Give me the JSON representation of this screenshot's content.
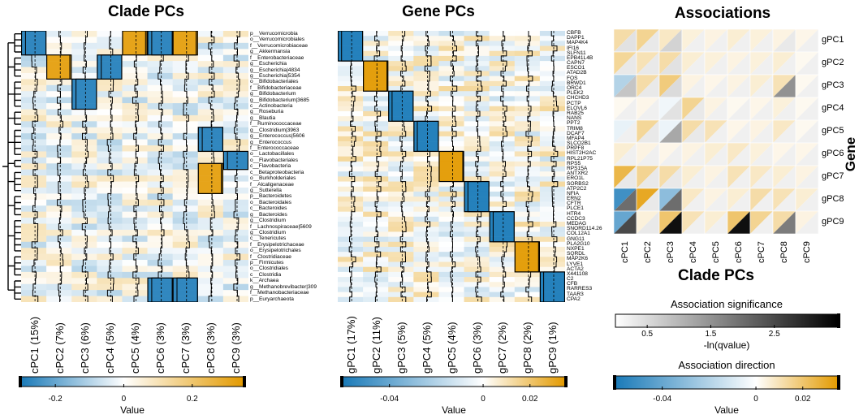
{
  "panels": {
    "clade": {
      "title": "Clade PCs",
      "column_labels": [
        "cPC1 (15%)",
        "cPC2 (7%)",
        "cPC3 (6%)",
        "cPC4 (5%)",
        "cPC5 (4%)",
        "cPC6 (3%)",
        "cPC7 (3%)",
        "cPC8 (3%)",
        "cPC9 (3%)"
      ],
      "row_labels": [
        "p__Verrucomicrobia",
        "o__Verrucomicrobiales",
        "f__Verrucomicrobiaceae",
        "g__Akkermansia",
        "f__Enterobacteriaceae",
        "g__Escherichia",
        "g__Escherichia|4834",
        "g__Escherichia|5354",
        "o__Bifidobacteriales",
        "f__Bifidobacteriaceae",
        "g__Bifidobacterium",
        "g__Bifidobacterium|3685",
        "c__Actinobacteria",
        "g__Roseburia",
        "g__Blautia",
        "f__Ruminococcaceae",
        "g__Clostridium|3963",
        "g__Enterococcus|5606",
        "g__Enterococcus",
        "f__Enterococcaceae",
        "o__Lactobacillales",
        "o__Flavobacteriales",
        "c__Flavobacteria",
        "c__Betaproteobacteria",
        "o__Burkholderiales",
        "f__Alcaligenaceae",
        "g__Sutterella",
        "p__Bacteroidetes",
        "o__Bacteroidales",
        "c__Bacteroides",
        "g__Bacteroides",
        "g__Clostridium",
        "f__Lachnospiraceae|5609",
        "g__Clostridium",
        "c__Tenericutes",
        "f__Erysipelotrichaceae",
        "o__Erysipelotrichales",
        "f__Clostridiaceae",
        "p__Firmicutes",
        "o__Clostridiales",
        "c__Clostridia",
        "k__Archaea",
        "g__Methanobrevibacter|309",
        "f__Methanobacteriaceae",
        "p__Euryarchaeota"
      ],
      "colorbar": {
        "ticks": [
          "-0.2",
          "0",
          "0.2"
        ],
        "label": "Value"
      }
    },
    "gene": {
      "title": "Gene PCs",
      "column_labels": [
        "gPC1 (17%)",
        "gPC2 (11%)",
        "gPC3 (5%)",
        "gPC4 (5%)",
        "gPC5 (4%)",
        "gPC6 (3%)",
        "gPC7 (2%)",
        "gPC8 (2%)",
        "gPC9 (1%)"
      ],
      "row_labels": [
        "CBFB",
        "DAPP1",
        "MAP4K4",
        "IFI16",
        "SLFN11",
        "EPB41L4B",
        "CAPN7",
        "ESCO1",
        "ATAD2B",
        "FOS",
        "BRWD1",
        "ORC4",
        "PLEK2",
        "CHCHD3",
        "PCTP",
        "ELOVL6",
        "RAB25",
        "NANS",
        "PPT2",
        "TRIM8",
        "DCAF7",
        "MFAP4",
        "SLCO2B1",
        "PRPF8",
        "HIST2H2AC",
        "RPL21P75",
        "RPS5",
        "RPS15A",
        "ANTXR2",
        "ERO1L",
        "SORBS2",
        "ATP2C2",
        "NFIA",
        "ERN2",
        "CFTR",
        "PLCE1",
        "HTR4",
        "CCDC3",
        "MEDAG",
        "SNORD114.26",
        "COL12A1",
        "GNG11",
        "PLA2G10",
        "NXPE1",
        "SQRDL",
        "MAP2K6",
        "LYVE1",
        "ACTA2",
        "X441108",
        "C2",
        "CFB",
        "RARRES3",
        "TAAR3",
        "CPA2"
      ],
      "colorbar": {
        "ticks": [
          "-0.04",
          "0",
          "0.02"
        ],
        "label": "Value"
      }
    },
    "assoc": {
      "title": "Associations",
      "x_labels": [
        "cPC1",
        "cPC2",
        "cPC3",
        "cPC4",
        "cPC5",
        "cPC6",
        "cPC7",
        "cPC8",
        "cPC9"
      ],
      "y_labels": [
        "gPC1",
        "gPC2",
        "gPC3",
        "gPC4",
        "gPC5",
        "gPC6",
        "gPC7",
        "gPC8",
        "gPC9"
      ],
      "x_axis_title": "Clade PCs",
      "y_axis_title": "Gene PCs",
      "significance_bar": {
        "title": "Association significance",
        "ticks": [
          "0.5",
          "1.5",
          "2.5"
        ],
        "label": "-ln(qvalue)"
      },
      "direction_bar": {
        "title": "Association direction",
        "ticks": [
          "-0.04",
          "0",
          "0.02"
        ],
        "label": "Value"
      }
    }
  },
  "colors": {
    "negative": "#1a7ab8",
    "neutral": "#ffffff",
    "positive": "#e39a00",
    "sig_high": "#000000",
    "sig_low": "#ffffff"
  },
  "chart_data": [
    {
      "type": "heatmap",
      "title": "Clade PCs",
      "value_range": [
        -0.3,
        0.35
      ],
      "highlight_blocks": [
        {
          "column": "cPC1 (15%)",
          "rows": [
            0,
            3
          ]
        },
        {
          "column": "cPC2 (7%)",
          "rows": [
            4,
            7
          ]
        },
        {
          "column": "cPC3 (6%)",
          "rows": [
            8,
            12
          ]
        },
        {
          "column": "cPC4 (5%)",
          "rows": [
            4,
            7
          ]
        },
        {
          "column": "cPC5 (4%)",
          "rows": [
            0,
            3
          ]
        },
        {
          "column": "cPC6 (3%)",
          "rows": [
            0,
            3
          ]
        },
        {
          "column": "cPC6 (3%)",
          "rows": [
            41,
            44
          ]
        },
        {
          "column": "cPC7 (3%)",
          "rows": [
            0,
            3
          ]
        },
        {
          "column": "cPC7 (3%)",
          "rows": [
            41,
            44
          ]
        },
        {
          "column": "cPC8 (3%)",
          "rows": [
            16,
            19
          ]
        },
        {
          "column": "cPC8 (3%)",
          "rows": [
            22,
            26
          ]
        },
        {
          "column": "cPC9 (3%)",
          "rows": [
            20,
            22
          ]
        }
      ]
    },
    {
      "type": "heatmap",
      "title": "Gene PCs",
      "value_range": [
        -0.06,
        0.035
      ],
      "highlight_blocks": [
        {
          "column": "gPC1 (17%)",
          "rows": [
            0,
            5
          ]
        },
        {
          "column": "gPC2 (11%)",
          "rows": [
            6,
            11
          ]
        },
        {
          "column": "gPC3 (5%)",
          "rows": [
            12,
            17
          ]
        },
        {
          "column": "gPC4 (5%)",
          "rows": [
            18,
            23
          ]
        },
        {
          "column": "gPC5 (4%)",
          "rows": [
            24,
            29
          ]
        },
        {
          "column": "gPC6 (3%)",
          "rows": [
            30,
            35
          ]
        },
        {
          "column": "gPC7 (2%)",
          "rows": [
            36,
            41
          ]
        },
        {
          "column": "gPC8 (2%)",
          "rows": [
            42,
            47
          ]
        },
        {
          "column": "gPC9 (1%)",
          "rows": [
            48,
            53
          ]
        }
      ]
    },
    {
      "type": "heatmap",
      "title": "Associations",
      "notes": "Each cell split diagonally: upper-left triangle = association direction, lower-right triangle = significance",
      "direction": [
        [
          0.012,
          0.015,
          0.008,
          0.005,
          0.004,
          0.006,
          0.005,
          0.004,
          0.003
        ],
        [
          0.014,
          0.01,
          0.012,
          0.006,
          0.005,
          0.004,
          0.005,
          0.006,
          0.002
        ],
        [
          -0.02,
          0.012,
          0.018,
          0.004,
          0.003,
          0.004,
          0.006,
          0.01,
          0.002
        ],
        [
          0.002,
          0.003,
          -0.004,
          0.015,
          0.004,
          0.002,
          0.003,
          0.005,
          0.002
        ],
        [
          -0.006,
          0.014,
          -0.005,
          0.012,
          0.01,
          0.003,
          0.004,
          0.008,
          0.002
        ],
        [
          0.006,
          0.004,
          0.003,
          0.004,
          0.006,
          0.008,
          0.005,
          0.003,
          0.003
        ],
        [
          0.025,
          0.015,
          0.012,
          0.006,
          0.004,
          0.01,
          0.008,
          0.006,
          0.004
        ],
        [
          -0.05,
          0.03,
          -0.03,
          0.008,
          0.004,
          0.006,
          0.012,
          0.01,
          0.006
        ],
        [
          -0.04,
          0.005,
          0.02,
          0.01,
          0.006,
          0.02,
          0.015,
          0.012,
          0.004
        ]
      ],
      "significance": [
        [
          0.4,
          0.3,
          0.6,
          0.2,
          0.2,
          0.2,
          0.2,
          0.3,
          0.2
        ],
        [
          0.3,
          0.3,
          0.4,
          0.2,
          0.2,
          0.2,
          0.2,
          0.2,
          0.2
        ],
        [
          0.8,
          0.3,
          0.5,
          0.2,
          0.2,
          0.2,
          0.2,
          1.5,
          0.2
        ],
        [
          0.2,
          0.2,
          0.4,
          0.3,
          0.2,
          0.2,
          0.2,
          0.2,
          0.2
        ],
        [
          0.2,
          0.3,
          1.2,
          0.3,
          0.2,
          0.2,
          0.2,
          0.2,
          0.2
        ],
        [
          0.2,
          0.2,
          0.2,
          0.2,
          0.2,
          0.2,
          0.2,
          0.2,
          0.2
        ],
        [
          0.3,
          0.3,
          0.3,
          0.2,
          0.2,
          0.2,
          0.2,
          0.2,
          0.2
        ],
        [
          2.0,
          0.3,
          2.0,
          0.2,
          0.2,
          0.2,
          0.2,
          0.2,
          0.2
        ],
        [
          2.5,
          0.3,
          3.3,
          0.2,
          0.2,
          3.3,
          0.2,
          1.8,
          0.2
        ]
      ],
      "significance_range": [
        0,
        3.5
      ],
      "direction_range": [
        -0.06,
        0.035
      ]
    }
  ]
}
